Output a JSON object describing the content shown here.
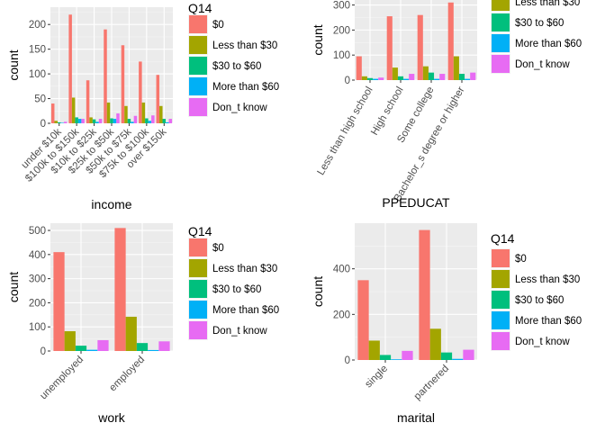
{
  "legend": {
    "title": "Q14",
    "items": [
      "$0",
      "Less than $30",
      "$30 to $60",
      "More than $60",
      "Don_t know"
    ],
    "colors": [
      "#F8766D",
      "#A3A500",
      "#00BF7D",
      "#00B0F6",
      "#E76BF3"
    ]
  },
  "chart_data": [
    {
      "type": "bar",
      "xlabel": "income",
      "ylabel": "count",
      "ylim": [
        0,
        235
      ],
      "yticks": [
        0,
        50,
        100,
        150,
        200
      ],
      "categories": [
        "under $10k",
        "$100k to $150k",
        "$10k to $25k",
        "$25k to $50k",
        "$50k to $75k",
        "$75k to $100k",
        "over $150k"
      ],
      "series": [
        {
          "name": "$0",
          "values": [
            40,
            220,
            87,
            190,
            158,
            125,
            98
          ]
        },
        {
          "name": "Less than $30",
          "values": [
            5,
            52,
            12,
            42,
            35,
            42,
            35
          ]
        },
        {
          "name": "$30 to $60",
          "values": [
            2,
            12,
            8,
            10,
            9,
            10,
            9
          ]
        },
        {
          "name": "More than $60",
          "values": [
            1,
            9,
            3,
            9,
            3,
            5,
            2
          ]
        },
        {
          "name": "Don_t know",
          "values": [
            3,
            9,
            9,
            20,
            15,
            16,
            9
          ]
        }
      ]
    },
    {
      "type": "bar",
      "xlabel": "PPEDUCAT",
      "ylabel": "count",
      "ylim": [
        0,
        320
      ],
      "yticks": [
        0,
        100,
        200,
        300
      ],
      "categories": [
        "Less than high school",
        "High school",
        "Some college",
        "Bachelor_s degree or higher"
      ],
      "series": [
        {
          "name": "$0",
          "values": [
            95,
            255,
            260,
            310
          ]
        },
        {
          "name": "Less than $30",
          "values": [
            15,
            50,
            55,
            95
          ]
        },
        {
          "name": "$30 to $60",
          "values": [
            8,
            15,
            30,
            25
          ]
        },
        {
          "name": "More than $60",
          "values": [
            5,
            5,
            5,
            5
          ]
        },
        {
          "name": "Don_t know",
          "values": [
            10,
            25,
            25,
            30
          ]
        }
      ]
    },
    {
      "type": "bar",
      "xlabel": "work",
      "ylabel": "count",
      "ylim": [
        0,
        530
      ],
      "yticks": [
        0,
        100,
        200,
        300,
        400,
        500
      ],
      "categories": [
        "unemployed",
        "employed"
      ],
      "series": [
        {
          "name": "$0",
          "values": [
            410,
            510
          ]
        },
        {
          "name": "Less than $30",
          "values": [
            82,
            142
          ]
        },
        {
          "name": "$30 to $60",
          "values": [
            22,
            33
          ]
        },
        {
          "name": "More than $60",
          "values": [
            5,
            4
          ]
        },
        {
          "name": "Don_t know",
          "values": [
            45,
            40
          ]
        }
      ]
    },
    {
      "type": "bar",
      "xlabel": "marital",
      "ylabel": "count",
      "ylim": [
        0,
        600
      ],
      "yticks": [
        0,
        200,
        400
      ],
      "categories": [
        "single",
        "partnered"
      ],
      "series": [
        {
          "name": "$0",
          "values": [
            350,
            570
          ]
        },
        {
          "name": "Less than $30",
          "values": [
            85,
            137
          ]
        },
        {
          "name": "$30 to $60",
          "values": [
            22,
            33
          ]
        },
        {
          "name": "More than $60",
          "values": [
            3,
            5
          ]
        },
        {
          "name": "Don_t know",
          "values": [
            40,
            45
          ]
        }
      ]
    }
  ]
}
